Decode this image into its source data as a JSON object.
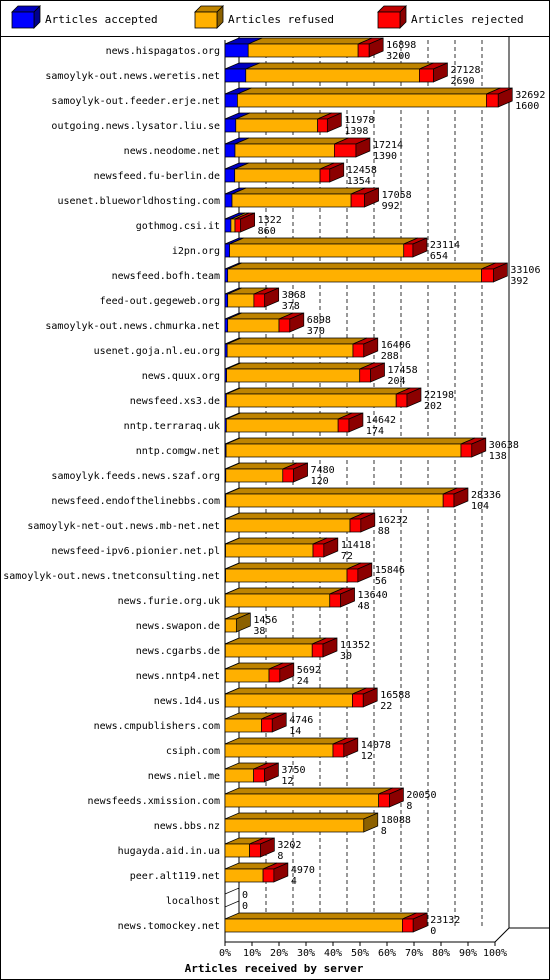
{
  "chart_data": {
    "type": "bar",
    "orientation": "horizontal",
    "stacked": true,
    "xlabel": "Articles received by server",
    "xlim": [
      0,
      100
    ],
    "x_unit": "%",
    "x_ticks": [
      "0%",
      "10%",
      "20%",
      "30%",
      "40%",
      "50%",
      "60%",
      "70%",
      "80%",
      "90%",
      "100%"
    ],
    "grid": "vertical dashed",
    "legend": {
      "placement": "top",
      "entries": [
        {
          "name": "Articles accepted",
          "color": "#0000ff"
        },
        {
          "name": "Articles refused",
          "color": "#ffb000"
        },
        {
          "name": "Articles rejected",
          "color": "#ff0000"
        }
      ]
    },
    "categories": [
      "news.hispagatos.org",
      "samoylyk-out.news.weretis.net",
      "samoylyk-out.feeder.erje.net",
      "outgoing.news.lysator.liu.se",
      "news.neodome.net",
      "newsfeed.fu-berlin.de",
      "usenet.blueworldhosting.com",
      "gothmog.csi.it",
      "i2pn.org",
      "newsfeed.bofh.team",
      "feed-out.gegeweb.org",
      "samoylyk-out.news.chmurka.net",
      "usenet.goja.nl.eu.org",
      "news.quux.org",
      "newsfeed.xs3.de",
      "nntp.terraraq.uk",
      "nntp.comgw.net",
      "samoylyk.feeds.news.szaf.org",
      "newsfeed.endofthelinebbs.com",
      "samoylyk-net-out.news.mb-net.net",
      "newsfeed-ipv6.pionier.net.pl",
      "samoylyk-out.news.tnetconsulting.net",
      "news.furie.org.uk",
      "news.swapon.de",
      "news.cgarbs.de",
      "news.nntp4.net",
      "news.1d4.us",
      "news.cmpublishers.com",
      "csiph.com",
      "news.niel.me",
      "newsfeeds.xmission.com",
      "news.bbs.nz",
      "hugayda.aid.in.ua",
      "peer.alt119.net",
      "localhost",
      "news.tomockey.net"
    ],
    "label_top": [
      16898,
      27128,
      32692,
      11978,
      17214,
      12458,
      17058,
      1322,
      23114,
      33106,
      3868,
      6898,
      16406,
      17458,
      22198,
      14642,
      30638,
      7480,
      28336,
      16232,
      11418,
      15846,
      13640,
      1456,
      11352,
      5692,
      16588,
      4746,
      14078,
      3750,
      20050,
      18088,
      3202,
      4970,
      0,
      23132
    ],
    "label_bottom": [
      3200,
      2690,
      1600,
      1398,
      1390,
      1354,
      992,
      860,
      654,
      392,
      378,
      370,
      288,
      204,
      202,
      174,
      138,
      120,
      104,
      88,
      72,
      56,
      48,
      38,
      30,
      24,
      22,
      14,
      12,
      12,
      8,
      8,
      8,
      4,
      0,
      0
    ],
    "series": [
      {
        "name": "Articles accepted",
        "color": "#0000ff",
        "values": [
          8.6,
          7.7,
          4.6,
          4.0,
          3.7,
          3.6,
          2.6,
          2.2,
          1.7,
          1.0,
          1.0,
          1.0,
          0.8,
          0.6,
          0.5,
          0.5,
          0.4,
          0.3,
          0.3,
          0.2,
          0.2,
          0.2,
          0.1,
          0.1,
          0.1,
          0.1,
          0.1,
          0,
          0,
          0,
          0,
          0,
          0,
          0,
          0,
          0
        ]
      },
      {
        "name": "Articles refused",
        "color": "#ffb000",
        "values": [
          40.7,
          64.3,
          92.2,
          30.3,
          36.8,
          31.6,
          44.1,
          1.5,
          64.5,
          94.0,
          9.7,
          19.0,
          46.6,
          49.3,
          62.9,
          41.4,
          87.0,
          21.1,
          80.5,
          46.1,
          32.4,
          45.0,
          38.7,
          4.1,
          32.2,
          16.2,
          47.1,
          13.5,
          40.0,
          10.6,
          56.9,
          51.4,
          9.1,
          14.1,
          0,
          65.7
        ]
      },
      {
        "name": "Articles rejected",
        "color": "#ff0000",
        "values": [
          4.1,
          5.2,
          4.4,
          3.6,
          8.0,
          3.6,
          5.0,
          2.1,
          3.4,
          4.4,
          4.0,
          4.0,
          4.0,
          4.0,
          4.0,
          4.0,
          4.0,
          4.0,
          4.0,
          4.0,
          4.0,
          4.0,
          4.0,
          0,
          4.0,
          4.0,
          4.0,
          4.0,
          4.0,
          4.0,
          4.0,
          0,
          4.0,
          4.0,
          0,
          4.0
        ]
      }
    ]
  }
}
